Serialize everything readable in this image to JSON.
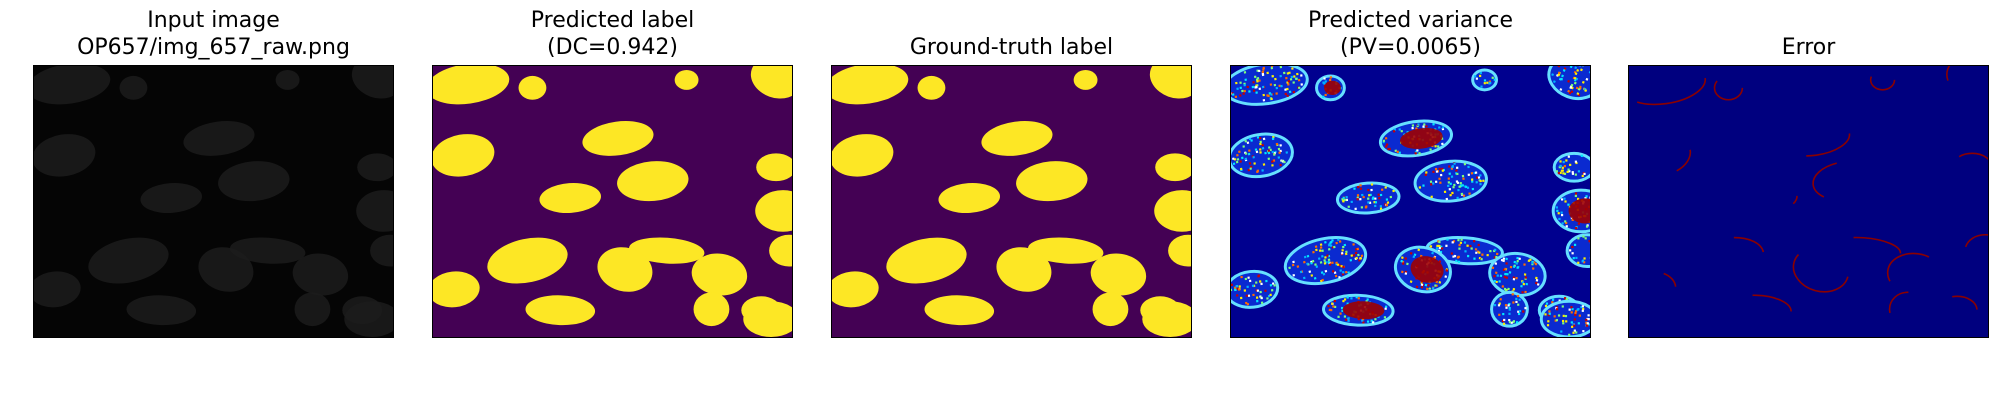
{
  "figure": {
    "panels": [
      {
        "title_line1": "Input image",
        "title_line2": "OP657/img_657_raw.png",
        "kind": "raw"
      },
      {
        "title_line1": "Predicted label",
        "title_line2": "(DC=0.942)",
        "kind": "pred"
      },
      {
        "title_line1": "Ground-truth label",
        "title_line2": "",
        "kind": "gt"
      },
      {
        "title_line1": "Predicted variance",
        "title_line2": "(PV=0.0065)",
        "kind": "var"
      },
      {
        "title_line1": "Error",
        "title_line2": "",
        "kind": "err"
      }
    ]
  },
  "colors": {
    "raw_bg": "#050505",
    "raw_cell": "#1c1c1c",
    "label_bg": "#440154",
    "label_fg": "#fde725",
    "var_bg": "#00008f",
    "var_mid": "#00b4ff",
    "var_high": "#9f0000",
    "err_bg": "#00007f",
    "err_fg": "#8b0000"
  }
}
